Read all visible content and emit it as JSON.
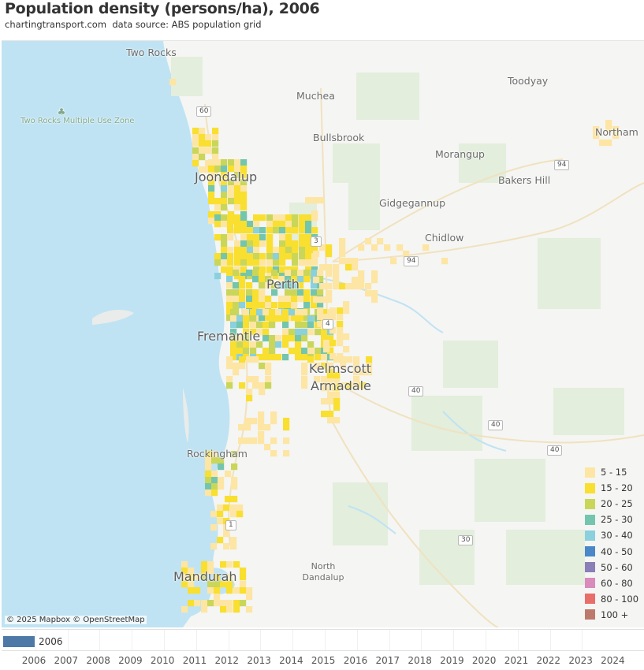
{
  "title": "Population density (persons/ha), 2006",
  "subtitle": "chartingtransport.com  data source: ABS population grid",
  "map": {
    "places": [
      {
        "name": "Two Rocks",
        "big": false
      },
      {
        "name": "Muchea",
        "big": false
      },
      {
        "name": "Toodyay",
        "big": false
      },
      {
        "name": "Bullsbrook",
        "big": false
      },
      {
        "name": "Northam",
        "big": false
      },
      {
        "name": "Morangup",
        "big": false
      },
      {
        "name": "Joondalup",
        "big": true
      },
      {
        "name": "Bakers Hill",
        "big": false
      },
      {
        "name": "Gidgegannup",
        "big": false
      },
      {
        "name": "Chidlow",
        "big": false
      },
      {
        "name": "Perth",
        "big": true
      },
      {
        "name": "Fremantle",
        "big": true
      },
      {
        "name": "Kelmscott",
        "big": true
      },
      {
        "name": "Armadale",
        "big": true
      },
      {
        "name": "Rockingham",
        "big": false
      },
      {
        "name": "North Dandalup",
        "big": false
      },
      {
        "name": "Mandurah",
        "big": true
      }
    ],
    "poi": {
      "name": "Two Rocks Multiple Use Zone",
      "icon": "tree-icon"
    },
    "route_shields": [
      "60",
      "94",
      "3",
      "94",
      "4",
      "40",
      "40",
      "40",
      "1",
      "30"
    ],
    "credit": "© 2025 Mapbox © OpenStreetMap"
  },
  "legend": [
    {
      "label": "5 - 15",
      "color": "#fde5a4"
    },
    {
      "label": "15 - 20",
      "color": "#f9df2f"
    },
    {
      "label": "20 - 25",
      "color": "#c9d65a"
    },
    {
      "label": "25 - 30",
      "color": "#74c5ae"
    },
    {
      "label": "30 - 40",
      "color": "#8ad0dd"
    },
    {
      "label": "40 - 50",
      "color": "#4a87c9"
    },
    {
      "label": "50 - 60",
      "color": "#8a7fb7"
    },
    {
      "label": "60 - 80",
      "color": "#d98bbd"
    },
    {
      "label": "80 - 100",
      "color": "#e86e6a"
    },
    {
      "label": "100 +",
      "color": "#bd7a6c"
    }
  ],
  "timeline": {
    "selected": "2006",
    "selected_color": "#4e79a7",
    "years": [
      "2006",
      "2007",
      "2008",
      "2009",
      "2010",
      "2011",
      "2012",
      "2013",
      "2014",
      "2015",
      "2016",
      "2017",
      "2018",
      "2019",
      "2020",
      "2021",
      "2022",
      "2023",
      "2024"
    ]
  }
}
